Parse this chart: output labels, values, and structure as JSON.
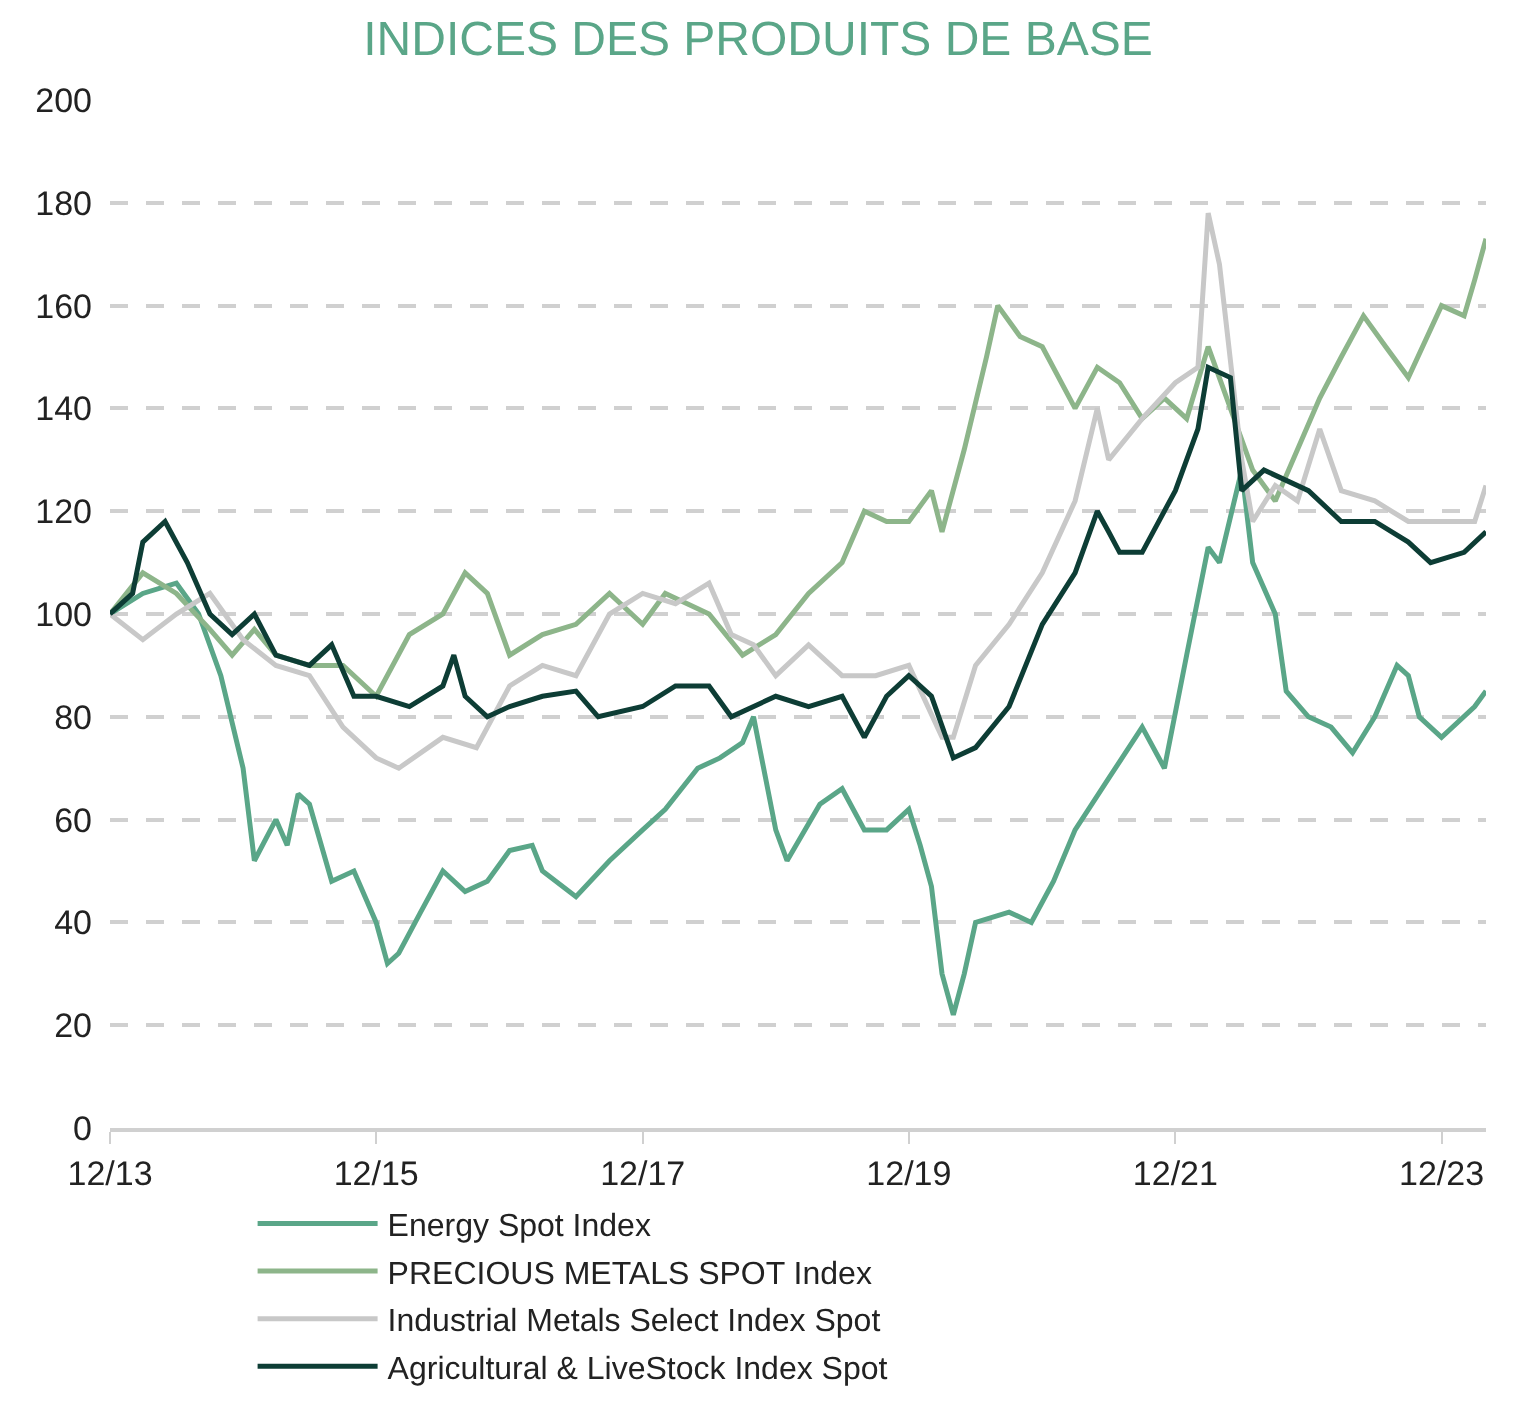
{
  "chart_data": {
    "type": "line",
    "title": "INDICES DES PRODUITS DE BASE",
    "xlim": [
      "2013-12",
      "2024-04"
    ],
    "xticks": [
      {
        "value": "2013-12",
        "label": "12/13"
      },
      {
        "value": "2015-12",
        "label": "12/15"
      },
      {
        "value": "2017-12",
        "label": "12/17"
      },
      {
        "value": "2019-12",
        "label": "12/19"
      },
      {
        "value": "2021-12",
        "label": "12/21"
      },
      {
        "value": "2023-12",
        "label": "12/23"
      }
    ],
    "ylim": [
      0,
      200
    ],
    "yticks": [
      0,
      20,
      40,
      60,
      80,
      100,
      120,
      140,
      160,
      180,
      200
    ],
    "grid": "y",
    "legend": "bottom",
    "line_style": "solid",
    "marker": "none",
    "series": [
      {
        "name": "Energy Spot Index",
        "color": "#5aa688",
        "x": [
          "2013-12",
          "2014-03",
          "2014-06",
          "2014-08",
          "2014-10",
          "2014-12",
          "2015-01",
          "2015-03",
          "2015-04",
          "2015-05",
          "2015-06",
          "2015-08",
          "2015-10",
          "2015-12",
          "2016-01",
          "2016-02",
          "2016-04",
          "2016-06",
          "2016-08",
          "2016-10",
          "2016-12",
          "2017-02",
          "2017-03",
          "2017-06",
          "2017-09",
          "2017-12",
          "2018-02",
          "2018-05",
          "2018-07",
          "2018-09",
          "2018-10",
          "2018-12",
          "2019-01",
          "2019-04",
          "2019-06",
          "2019-08",
          "2019-10",
          "2019-12",
          "2020-01",
          "2020-02",
          "2020-03",
          "2020-04",
          "2020-05",
          "2020-06",
          "2020-09",
          "2020-11",
          "2021-01",
          "2021-03",
          "2021-06",
          "2021-09",
          "2021-11",
          "2022-01",
          "2022-03",
          "2022-04",
          "2022-06",
          "2022-07",
          "2022-09",
          "2022-10",
          "2022-12",
          "2023-02",
          "2023-04",
          "2023-06",
          "2023-08",
          "2023-09",
          "2023-10",
          "2023-12",
          "2024-03",
          "2024-04"
        ],
        "values": [
          100,
          104,
          106,
          100,
          88,
          70,
          52,
          60,
          55,
          65,
          63,
          48,
          50,
          40,
          32,
          34,
          42,
          50,
          46,
          48,
          54,
          55,
          50,
          45,
          52,
          58,
          62,
          70,
          72,
          75,
          80,
          58,
          52,
          63,
          66,
          58,
          58,
          62,
          55,
          47,
          30,
          22,
          30,
          40,
          42,
          40,
          48,
          58,
          68,
          78,
          70,
          92,
          113,
          110,
          128,
          110,
          100,
          85,
          80,
          78,
          73,
          80,
          90,
          88,
          80,
          76,
          82,
          85
        ]
      },
      {
        "name": "PRECIOUS METALS SPOT Index",
        "color": "#8db58a",
        "x": [
          "2013-12",
          "2014-03",
          "2014-06",
          "2014-09",
          "2014-11",
          "2015-01",
          "2015-03",
          "2015-06",
          "2015-09",
          "2015-12",
          "2016-03",
          "2016-06",
          "2016-08",
          "2016-10",
          "2016-12",
          "2017-03",
          "2017-06",
          "2017-09",
          "2017-12",
          "2018-02",
          "2018-06",
          "2018-09",
          "2018-12",
          "2019-03",
          "2019-06",
          "2019-08",
          "2019-10",
          "2019-12",
          "2020-02",
          "2020-03",
          "2020-05",
          "2020-07",
          "2020-08",
          "2020-10",
          "2020-12",
          "2021-03",
          "2021-05",
          "2021-07",
          "2021-09",
          "2021-11",
          "2022-01",
          "2022-03",
          "2022-05",
          "2022-07",
          "2022-09",
          "2022-11",
          "2023-01",
          "2023-03",
          "2023-05",
          "2023-07",
          "2023-09",
          "2023-12",
          "2024-02",
          "2024-03",
          "2024-04"
        ],
        "values": [
          100,
          108,
          104,
          97,
          92,
          97,
          92,
          90,
          90,
          84,
          96,
          100,
          108,
          104,
          92,
          96,
          98,
          104,
          98,
          104,
          100,
          92,
          96,
          104,
          110,
          120,
          118,
          118,
          124,
          116,
          132,
          150,
          160,
          154,
          152,
          140,
          148,
          145,
          138,
          142,
          138,
          152,
          140,
          128,
          122,
          132,
          142,
          150,
          158,
          152,
          146,
          160,
          158,
          165,
          173
        ]
      },
      {
        "name": "Industrial Metals Select Index Spot",
        "color": "#c8c8c8",
        "x": [
          "2013-12",
          "2014-03",
          "2014-06",
          "2014-09",
          "2014-12",
          "2015-03",
          "2015-06",
          "2015-09",
          "2015-12",
          "2016-02",
          "2016-06",
          "2016-09",
          "2016-12",
          "2017-03",
          "2017-06",
          "2017-09",
          "2017-12",
          "2018-03",
          "2018-06",
          "2018-08",
          "2018-10",
          "2018-12",
          "2019-03",
          "2019-06",
          "2019-09",
          "2019-12",
          "2020-03",
          "2020-04",
          "2020-06",
          "2020-09",
          "2020-12",
          "2021-03",
          "2021-05",
          "2021-06",
          "2021-09",
          "2021-12",
          "2022-02",
          "2022-03",
          "2022-04",
          "2022-06",
          "2022-07",
          "2022-09",
          "2022-11",
          "2023-01",
          "2023-03",
          "2023-06",
          "2023-09",
          "2023-12",
          "2024-03",
          "2024-04"
        ],
        "values": [
          100,
          95,
          100,
          104,
          95,
          90,
          88,
          78,
          72,
          70,
          76,
          74,
          86,
          90,
          88,
          100,
          104,
          102,
          106,
          96,
          94,
          88,
          94,
          88,
          88,
          90,
          76,
          76,
          90,
          98,
          108,
          122,
          140,
          130,
          138,
          145,
          148,
          178,
          168,
          130,
          118,
          125,
          122,
          136,
          124,
          122,
          118,
          118,
          118,
          125
        ]
      },
      {
        "name": "Agricultural & LiveStock Index Spot",
        "color": "#0d3d35",
        "x": [
          "2013-12",
          "2014-02",
          "2014-03",
          "2014-05",
          "2014-07",
          "2014-09",
          "2014-11",
          "2015-01",
          "2015-03",
          "2015-06",
          "2015-08",
          "2015-10",
          "2015-12",
          "2016-03",
          "2016-06",
          "2016-07",
          "2016-08",
          "2016-10",
          "2016-12",
          "2017-03",
          "2017-06",
          "2017-08",
          "2017-12",
          "2018-03",
          "2018-06",
          "2018-08",
          "2018-12",
          "2019-03",
          "2019-06",
          "2019-08",
          "2019-10",
          "2019-12",
          "2020-02",
          "2020-04",
          "2020-06",
          "2020-09",
          "2020-12",
          "2021-03",
          "2021-05",
          "2021-06",
          "2021-07",
          "2021-09",
          "2021-12",
          "2022-02",
          "2022-03",
          "2022-05",
          "2022-06",
          "2022-08",
          "2022-10",
          "2022-12",
          "2023-03",
          "2023-06",
          "2023-09",
          "2023-11",
          "2024-02",
          "2024-04"
        ],
        "values": [
          100,
          104,
          114,
          118,
          110,
          100,
          96,
          100,
          92,
          90,
          94,
          84,
          84,
          82,
          86,
          92,
          84,
          80,
          82,
          84,
          85,
          80,
          82,
          86,
          86,
          80,
          84,
          82,
          84,
          76,
          84,
          88,
          84,
          72,
          74,
          82,
          98,
          108,
          120,
          116,
          112,
          112,
          124,
          136,
          148,
          146,
          124,
          128,
          126,
          124,
          118,
          118,
          114,
          110,
          112,
          116
        ]
      }
    ]
  }
}
